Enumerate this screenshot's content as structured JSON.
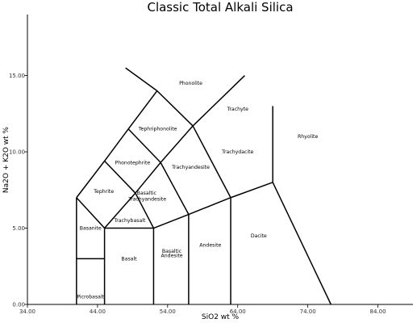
{
  "chart_data": {
    "type": "line",
    "title": "Classic Total Alkali Silica",
    "xlabel": "SiO2 wt %",
    "ylabel": "Na2O + K2O wt %",
    "xlim": [
      34,
      89
    ],
    "ylim": [
      0,
      19
    ],
    "x_ticks": [
      {
        "value": 34,
        "label": "34.00"
      },
      {
        "value": 44,
        "label": "44.00"
      },
      {
        "value": 54,
        "label": "54.00"
      },
      {
        "value": 64,
        "label": "64.00"
      },
      {
        "value": 74,
        "label": "74.00"
      },
      {
        "value": 84,
        "label": "84.00"
      }
    ],
    "y_ticks": [
      {
        "value": 0,
        "label": "0.00"
      },
      {
        "value": 5,
        "label": "5.00"
      },
      {
        "value": 10,
        "label": "10.00"
      },
      {
        "value": 15,
        "label": "15.00"
      }
    ],
    "grid": false,
    "boundaries": [
      [
        [
          41,
          0
        ],
        [
          41,
          7
        ]
      ],
      [
        [
          41,
          7
        ],
        [
          45,
          9.4
        ]
      ],
      [
        [
          45,
          9.4
        ],
        [
          48.4,
          11.5
        ]
      ],
      [
        [
          48.4,
          11.5
        ],
        [
          52.5,
          14
        ]
      ],
      [
        [
          52.5,
          14
        ],
        [
          48,
          15.5
        ]
      ],
      [
        [
          52.5,
          14
        ],
        [
          57.6,
          11.7
        ]
      ],
      [
        [
          57.6,
          11.7
        ],
        [
          65,
          15
        ]
      ],
      [
        [
          41,
          3
        ],
        [
          45,
          3
        ]
      ],
      [
        [
          45,
          0
        ],
        [
          45,
          5
        ]
      ],
      [
        [
          45,
          5
        ],
        [
          52,
          5
        ]
      ],
      [
        [
          52,
          0
        ],
        [
          52,
          5
        ]
      ],
      [
        [
          52,
          5
        ],
        [
          57,
          5.9
        ]
      ],
      [
        [
          57,
          0
        ],
        [
          57,
          5.9
        ]
      ],
      [
        [
          57,
          5.9
        ],
        [
          63,
          7
        ]
      ],
      [
        [
          63,
          0
        ],
        [
          63,
          7
        ]
      ],
      [
        [
          63,
          7
        ],
        [
          69,
          8
        ]
      ],
      [
        [
          69,
          8
        ],
        [
          69,
          13
        ]
      ],
      [
        [
          69,
          8
        ],
        [
          77.3,
          0
        ]
      ],
      [
        [
          45,
          5
        ],
        [
          49.4,
          7.3
        ]
      ],
      [
        [
          49.4,
          7.3
        ],
        [
          53,
          9.3
        ]
      ],
      [
        [
          53,
          9.3
        ],
        [
          57.6,
          11.7
        ]
      ],
      [
        [
          41,
          7
        ],
        [
          45,
          5
        ]
      ],
      [
        [
          45,
          9.4
        ],
        [
          49.4,
          7.3
        ]
      ],
      [
        [
          48.4,
          11.5
        ],
        [
          53,
          9.3
        ]
      ],
      [
        [
          49.4,
          7.3
        ],
        [
          52,
          5
        ]
      ],
      [
        [
          53,
          9.3
        ],
        [
          57,
          5.9
        ]
      ],
      [
        [
          57.6,
          11.7
        ],
        [
          63,
          7
        ]
      ]
    ],
    "fields": [
      {
        "name": "Phonolite",
        "x": 57.3,
        "y": 14.5
      },
      {
        "name": "Trachyte",
        "x": 64.0,
        "y": 12.8
      },
      {
        "name": "Tephriphonolite",
        "x": 52.6,
        "y": 11.5
      },
      {
        "name": "Phonotephrite",
        "x": 49.0,
        "y": 9.3
      },
      {
        "name": "Trachyandesite",
        "x": 57.3,
        "y": 9.0
      },
      {
        "name": "Trachydacite",
        "x": 64.0,
        "y": 10.0
      },
      {
        "name": "Rhyolite",
        "x": 74.0,
        "y": 11.0
      },
      {
        "name": "Tephrite",
        "x": 44.9,
        "y": 7.4
      },
      {
        "name": "Basaltic",
        "x": 51.0,
        "y": 7.3
      },
      {
        "name": "Trachyandesite",
        "x": 51.1,
        "y": 6.9
      },
      {
        "name": "Trachybasalt",
        "x": 48.6,
        "y": 5.5
      },
      {
        "name": "Basanite",
        "x": 43.0,
        "y": 5.0
      },
      {
        "name": "Basalt",
        "x": 48.5,
        "y": 3.0
      },
      {
        "name": "Basaltic",
        "x": 54.6,
        "y": 3.5
      },
      {
        "name": "Andesite",
        "x": 54.6,
        "y": 3.2
      },
      {
        "name": "Andesite",
        "x": 60.1,
        "y": 3.9
      },
      {
        "name": "Dacite",
        "x": 67.0,
        "y": 4.5
      },
      {
        "name": "Picrobasalt",
        "x": 43.0,
        "y": 0.5
      }
    ]
  }
}
